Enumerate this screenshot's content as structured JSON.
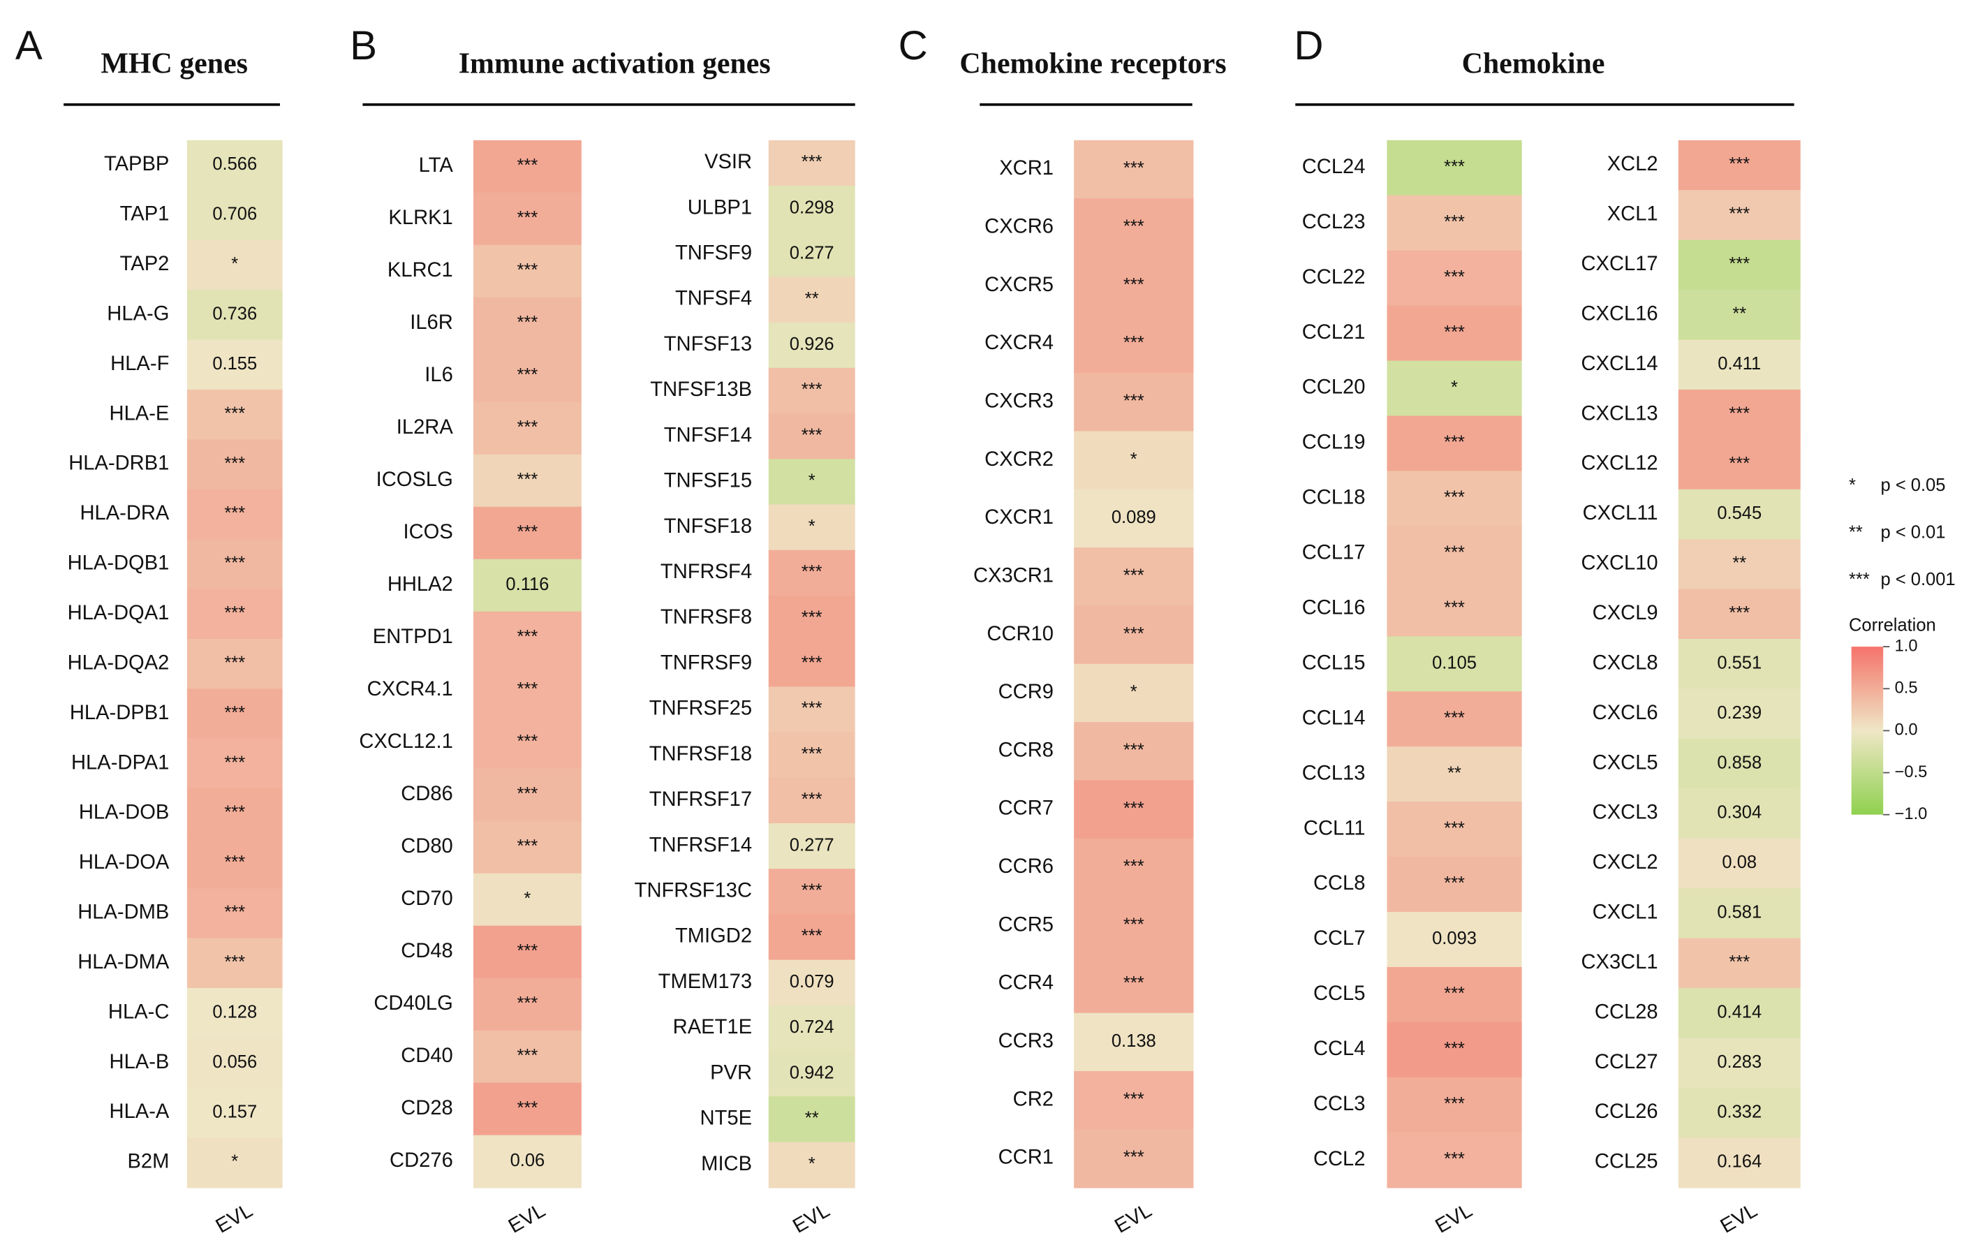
{
  "chart_data": [
    {
      "type": "heatmap",
      "panel_label": "A",
      "title": "MHC genes",
      "columns": [
        {
          "x_label": "EVL",
          "rows": [
            "TAPBP",
            "TAP1",
            "TAP2",
            "HLA-G",
            "HLA-F",
            "HLA-E",
            "HLA-DRB1",
            "HLA-DRA",
            "HLA-DQB1",
            "HLA-DQA1",
            "HLA-DQA2",
            "HLA-DPB1",
            "HLA-DPA1",
            "HLA-DOB",
            "HLA-DOA",
            "HLA-DMB",
            "HLA-DMA",
            "HLA-C",
            "HLA-B",
            "HLA-A",
            "B2M"
          ],
          "labels": [
            "0.566",
            "0.706",
            "*",
            "0.736",
            "0.155",
            "***",
            "***",
            "***",
            "***",
            "***",
            "***",
            "***",
            "***",
            "***",
            "***",
            "***",
            "***",
            "0.128",
            "0.056",
            "0.157",
            "*"
          ],
          "values": [
            -0.1,
            -0.1,
            0.05,
            -0.15,
            0.02,
            0.3,
            0.4,
            0.45,
            0.4,
            0.45,
            0.35,
            0.5,
            0.45,
            0.5,
            0.5,
            0.45,
            0.3,
            0.0,
            0.02,
            0.0,
            0.05
          ]
        }
      ]
    },
    {
      "type": "heatmap",
      "panel_label": "B",
      "title": "Immune activation genes",
      "columns": [
        {
          "x_label": "EVL",
          "rows": [
            "LTA",
            "KLRK1",
            "KLRC1",
            "IL6R",
            "IL6",
            "IL2RA",
            "ICOSLG",
            "ICOS",
            "HHLA2",
            "ENTPD1",
            "CXCR4.1",
            "CXCL12.1",
            "CD86",
            "CD80",
            "CD70",
            "CD48",
            "CD40LG",
            "CD40",
            "CD28",
            "CD276"
          ],
          "labels": [
            "***",
            "***",
            "***",
            "***",
            "***",
            "***",
            "***",
            "***",
            "0.116",
            "***",
            "***",
            "***",
            "***",
            "***",
            "*",
            "***",
            "***",
            "***",
            "***",
            "0.06"
          ],
          "values": [
            0.55,
            0.5,
            0.3,
            0.4,
            0.4,
            0.35,
            0.15,
            0.55,
            -0.25,
            0.45,
            0.45,
            0.45,
            0.4,
            0.35,
            0.05,
            0.6,
            0.5,
            0.35,
            0.6,
            0.03
          ]
        },
        {
          "x_label": "EVL",
          "rows": [
            "VSIR",
            "ULBP1",
            "TNFSF9",
            "TNFSF4",
            "TNFSF13",
            "TNFSF13B",
            "TNFSF14",
            "TNFSF15",
            "TNFSF18",
            "TNFRSF4",
            "TNFRSF8",
            "TNFRSF9",
            "TNFRSF25",
            "TNFRSF18",
            "TNFRSF17",
            "TNFRSF14",
            "TNFRSF13C",
            "TMIGD2",
            "TMEM173",
            "RAET1E",
            "PVR",
            "NT5E",
            "MICB"
          ],
          "labels": [
            "***",
            "0.298",
            "0.277",
            "**",
            "0.926",
            "***",
            "***",
            "*",
            "*",
            "***",
            "***",
            "***",
            "***",
            "***",
            "***",
            "0.277",
            "***",
            "***",
            "0.079",
            "0.724",
            "0.942",
            "**",
            "*"
          ],
          "values": [
            0.2,
            -0.15,
            -0.15,
            0.15,
            -0.1,
            0.35,
            0.4,
            -0.3,
            0.1,
            0.5,
            0.55,
            0.55,
            0.25,
            0.3,
            0.35,
            -0.05,
            0.5,
            0.55,
            0.05,
            -0.1,
            -0.12,
            -0.35,
            0.1
          ]
        }
      ]
    },
    {
      "type": "heatmap",
      "panel_label": "C",
      "title": "Chemokine receptors",
      "columns": [
        {
          "x_label": "EVL",
          "rows": [
            "XCR1",
            "CXCR6",
            "CXCR5",
            "CXCR4",
            "CXCR3",
            "CXCR2",
            "CXCR1",
            "CX3CR1",
            "CCR10",
            "CCR9",
            "CCR8",
            "CCR7",
            "CCR6",
            "CCR5",
            "CCR4",
            "CCR3",
            "CR2",
            "CCR1"
          ],
          "labels": [
            "***",
            "***",
            "***",
            "***",
            "***",
            "*",
            "0.089",
            "***",
            "***",
            "*",
            "***",
            "***",
            "***",
            "***",
            "***",
            "0.138",
            "***",
            "***"
          ],
          "values": [
            0.35,
            0.5,
            0.5,
            0.5,
            0.4,
            0.1,
            0.03,
            0.35,
            0.4,
            0.1,
            0.4,
            0.6,
            0.5,
            0.5,
            0.5,
            0.03,
            0.45,
            0.4
          ]
        }
      ]
    },
    {
      "type": "heatmap",
      "panel_label": "D",
      "title": "Chemokine",
      "columns": [
        {
          "x_label": "EVL",
          "rows": [
            "CCL24",
            "CCL23",
            "CCL22",
            "CCL21",
            "CCL20",
            "CCL19",
            "CCL18",
            "CCL17",
            "CCL16",
            "CCL15",
            "CCL14",
            "CCL13",
            "CCL11",
            "CCL8",
            "CCL7",
            "CCL5",
            "CCL4",
            "CCL3",
            "CCL2"
          ],
          "labels": [
            "***",
            "***",
            "***",
            "***",
            "*",
            "***",
            "***",
            "***",
            "***",
            "0.105",
            "***",
            "**",
            "***",
            "***",
            "0.093",
            "***",
            "***",
            "***",
            "***"
          ],
          "values": [
            -0.45,
            0.3,
            0.45,
            0.55,
            -0.3,
            0.55,
            0.3,
            0.35,
            0.35,
            -0.25,
            0.5,
            0.15,
            0.35,
            0.4,
            0.03,
            0.55,
            0.65,
            0.5,
            0.45
          ]
        },
        {
          "x_label": "EVL",
          "rows": [
            "XCL2",
            "XCL1",
            "CXCL17",
            "CXCL16",
            "CXCL14",
            "CXCL13",
            "CXCL12",
            "CXCL11",
            "CXCL10",
            "CXCL9",
            "CXCL8",
            "CXCL6",
            "CXCL5",
            "CXCL3",
            "CXCL2",
            "CXCL1",
            "CX3CL1",
            "CCL28",
            "CCL27",
            "CCL26",
            "CCL25"
          ],
          "labels": [
            "***",
            "***",
            "***",
            "**",
            "0.411",
            "***",
            "***",
            "0.545",
            "**",
            "***",
            "0.551",
            "0.239",
            "0.858",
            "0.304",
            "0.08",
            "0.581",
            "***",
            "0.414",
            "0.283",
            "0.332",
            "0.164"
          ],
          "values": [
            0.55,
            0.25,
            -0.45,
            -0.35,
            -0.05,
            0.55,
            0.55,
            -0.15,
            0.2,
            0.35,
            -0.15,
            -0.1,
            -0.2,
            -0.15,
            0.05,
            -0.15,
            0.3,
            -0.2,
            -0.08,
            -0.15,
            0.05
          ]
        }
      ]
    }
  ],
  "legend": {
    "significance": [
      {
        "symbol": "*",
        "text": "p < 0.05"
      },
      {
        "symbol": "**",
        "text": "p < 0.01"
      },
      {
        "symbol": "***",
        "text": "p < 0.001"
      }
    ],
    "colorbar": {
      "title": "Correlation",
      "lim": [
        -1,
        1
      ],
      "colors": [
        "#8fd14f",
        "#efe6c6",
        "#f5736a"
      ],
      "ticks": [
        {
          "value": 1,
          "label": "1.0"
        },
        {
          "value": 0.5,
          "label": "0.5"
        },
        {
          "value": 0,
          "label": "0.0"
        },
        {
          "value": -0.5,
          "label": "−0.5"
        },
        {
          "value": -1,
          "label": "−1.0"
        }
      ]
    }
  }
}
